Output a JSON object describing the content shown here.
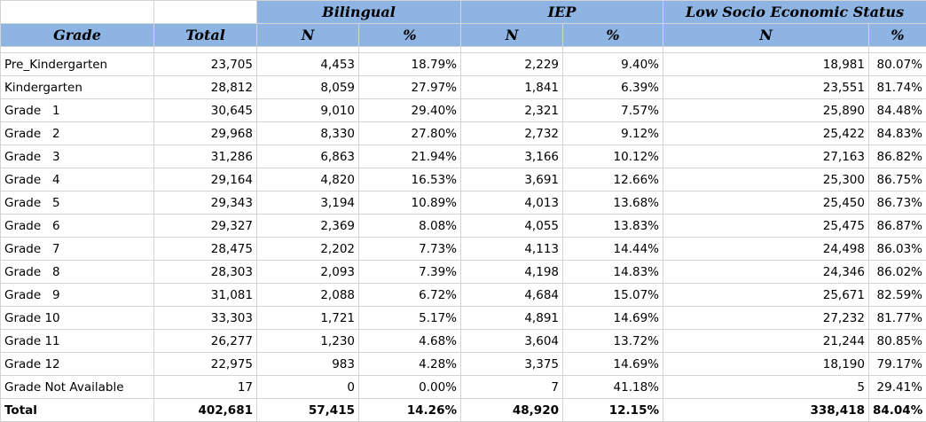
{
  "headers": {
    "groups": {
      "bilingual": "Bilingual",
      "iep": "IEP",
      "ses": "Low Socio Economic Status"
    },
    "grade": "Grade",
    "total": "Total",
    "bil_n": "N",
    "bil_pct": "%",
    "iep_n": "N",
    "iep_pct": "%",
    "ses_n": "N",
    "ses_pct": "%"
  },
  "rows": [
    {
      "grade": "Pre_Kindergarten",
      "total": "23,705",
      "bil_n": "4,453",
      "bil_pct": "18.79%",
      "iep_n": "2,229",
      "iep_pct": "9.40%",
      "ses_n": "18,981",
      "ses_pct": "80.07%"
    },
    {
      "grade": "Kindergarten",
      "total": "28,812",
      "bil_n": "8,059",
      "bil_pct": "27.97%",
      "iep_n": "1,841",
      "iep_pct": "6.39%",
      "ses_n": "23,551",
      "ses_pct": "81.74%"
    },
    {
      "grade": "Grade   1",
      "total": "30,645",
      "bil_n": "9,010",
      "bil_pct": "29.40%",
      "iep_n": "2,321",
      "iep_pct": "7.57%",
      "ses_n": "25,890",
      "ses_pct": "84.48%"
    },
    {
      "grade": "Grade   2",
      "total": "29,968",
      "bil_n": "8,330",
      "bil_pct": "27.80%",
      "iep_n": "2,732",
      "iep_pct": "9.12%",
      "ses_n": "25,422",
      "ses_pct": "84.83%"
    },
    {
      "grade": "Grade   3",
      "total": "31,286",
      "bil_n": "6,863",
      "bil_pct": "21.94%",
      "iep_n": "3,166",
      "iep_pct": "10.12%",
      "ses_n": "27,163",
      "ses_pct": "86.82%"
    },
    {
      "grade": "Grade   4",
      "total": "29,164",
      "bil_n": "4,820",
      "bil_pct": "16.53%",
      "iep_n": "3,691",
      "iep_pct": "12.66%",
      "ses_n": "25,300",
      "ses_pct": "86.75%"
    },
    {
      "grade": "Grade   5",
      "total": "29,343",
      "bil_n": "3,194",
      "bil_pct": "10.89%",
      "iep_n": "4,013",
      "iep_pct": "13.68%",
      "ses_n": "25,450",
      "ses_pct": "86.73%"
    },
    {
      "grade": "Grade   6",
      "total": "29,327",
      "bil_n": "2,369",
      "bil_pct": "8.08%",
      "iep_n": "4,055",
      "iep_pct": "13.83%",
      "ses_n": "25,475",
      "ses_pct": "86.87%"
    },
    {
      "grade": "Grade   7",
      "total": "28,475",
      "bil_n": "2,202",
      "bil_pct": "7.73%",
      "iep_n": "4,113",
      "iep_pct": "14.44%",
      "ses_n": "24,498",
      "ses_pct": "86.03%"
    },
    {
      "grade": "Grade   8",
      "total": "28,303",
      "bil_n": "2,093",
      "bil_pct": "7.39%",
      "iep_n": "4,198",
      "iep_pct": "14.83%",
      "ses_n": "24,346",
      "ses_pct": "86.02%"
    },
    {
      "grade": "Grade   9",
      "total": "31,081",
      "bil_n": "2,088",
      "bil_pct": "6.72%",
      "iep_n": "4,684",
      "iep_pct": "15.07%",
      "ses_n": "25,671",
      "ses_pct": "82.59%"
    },
    {
      "grade": "Grade 10",
      "total": "33,303",
      "bil_n": "1,721",
      "bil_pct": "5.17%",
      "iep_n": "4,891",
      "iep_pct": "14.69%",
      "ses_n": "27,232",
      "ses_pct": "81.77%"
    },
    {
      "grade": "Grade 11",
      "total": "26,277",
      "bil_n": "1,230",
      "bil_pct": "4.68%",
      "iep_n": "3,604",
      "iep_pct": "13.72%",
      "ses_n": "21,244",
      "ses_pct": "80.85%"
    },
    {
      "grade": "Grade 12",
      "total": "22,975",
      "bil_n": "983",
      "bil_pct": "4.28%",
      "iep_n": "3,375",
      "iep_pct": "14.69%",
      "ses_n": "18,190",
      "ses_pct": "79.17%"
    },
    {
      "grade": "Grade Not Available",
      "total": "17",
      "bil_n": "0",
      "bil_pct": "0.00%",
      "iep_n": "7",
      "iep_pct": "41.18%",
      "ses_n": "5",
      "ses_pct": "29.41%"
    }
  ],
  "total_row": {
    "grade": "Total",
    "total": "402,681",
    "bil_n": "57,415",
    "bil_pct": "14.26%",
    "iep_n": "48,920",
    "iep_pct": "12.15%",
    "ses_n": "338,418",
    "ses_pct": "84.04%"
  }
}
